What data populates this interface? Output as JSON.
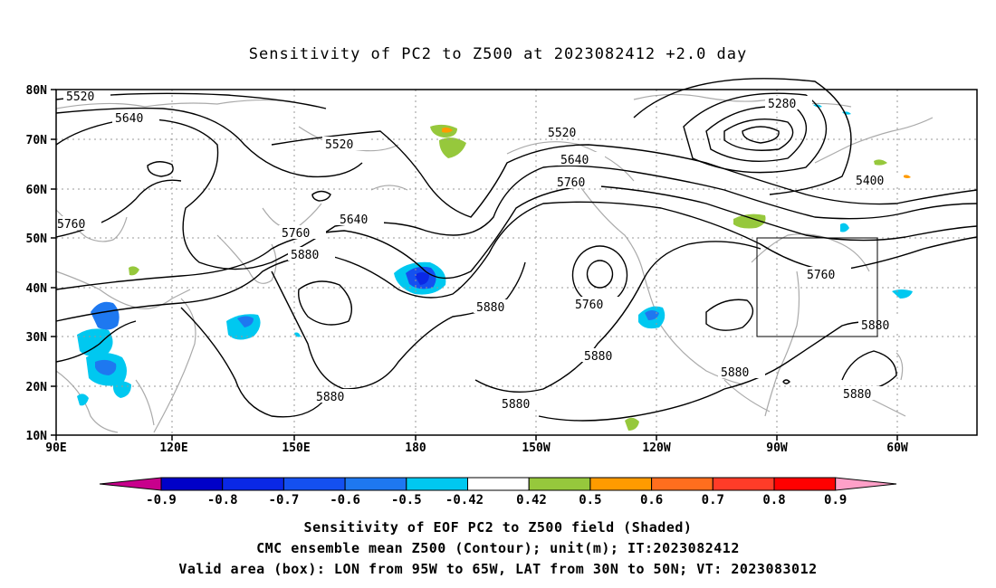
{
  "title": "Sensitivity of PC2 to Z500 at 2023082412 +2.0 day",
  "latitude_labels": [
    "80N",
    "70N",
    "60N",
    "50N",
    "40N",
    "30N",
    "20N",
    "10N"
  ],
  "longitude_labels": [
    "90E",
    "120E",
    "150E",
    "180",
    "150W",
    "120W",
    "90W",
    "60W"
  ],
  "contour_labels": [
    "5520",
    "5640",
    "5520",
    "5520",
    "5640",
    "5760",
    "5640",
    "5760",
    "5880",
    "5760",
    "5280",
    "5400",
    "5760",
    "5880",
    "5880",
    "5760",
    "5880",
    "5880",
    "5880",
    "5880",
    "5880"
  ],
  "colorbar": {
    "labels": [
      "-0.9",
      "-0.8",
      "-0.7",
      "-0.6",
      "-0.5",
      "-0.42",
      "0.42",
      "0.5",
      "0.6",
      "0.7",
      "0.8",
      "0.9"
    ],
    "colors": [
      "#c8008c",
      "#0000c8",
      "#0a28e6",
      "#1450f0",
      "#1e78f0",
      "#00c8f0",
      "#ffffff",
      "#96c83c",
      "#ff9b00",
      "#ff6e1e",
      "#ff3c28",
      "#ff0000",
      "#ffa0c8"
    ]
  },
  "valid_box": {
    "lon_from": "95W",
    "lon_to": "65W",
    "lat_from": "30N",
    "lat_to": "50N"
  },
  "caption": {
    "line1": "Sensitivity of EOF PC2 to Z500 field (Shaded)",
    "line2": "CMC ensemble mean Z500 (Contour); unit(m); IT:2023082412",
    "line3": "Valid area (box): LON from 95W to 65W, LAT from 30N to 50N; VT: 2023083012"
  }
}
